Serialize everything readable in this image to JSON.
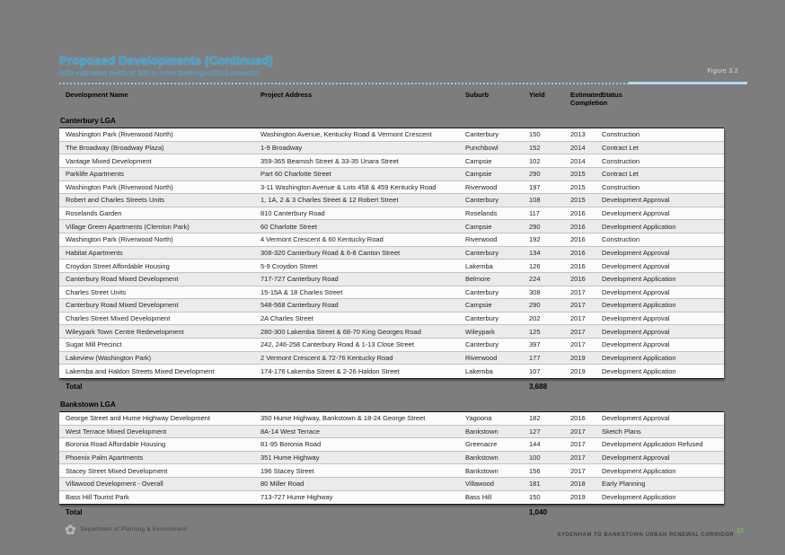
{
  "header": {
    "title": "Proposed Developments (Continued)",
    "subtitle": "With estimated yields of 100 or more dwellings (2013 onwards)",
    "figure_ref": "Figure 3.2",
    "accent_blue": "#2ea6de"
  },
  "table": {
    "columns": [
      "Development Name",
      "Project Address",
      "Suburb",
      "Yield",
      "Estimated Completion",
      "Status"
    ],
    "sections": [
      {
        "name": "Canterbury LGA",
        "total_label": "Total",
        "total": "3,688",
        "rows": [
          {
            "name": "Washington Park (Riverwood North)",
            "address": "Washington Avenue, Kentucky Road & Vermont Crescent",
            "suburb": "Canterbury",
            "yield": "150",
            "completion": "2013",
            "status": "Construction"
          },
          {
            "name": "The Broadway (Broadway Plaza)",
            "address": "1-9 Broadway",
            "suburb": "Punchbowl",
            "yield": "152",
            "completion": "2014",
            "status": "Contract Let"
          },
          {
            "name": "Vantage Mixed Development",
            "address": "359-365 Beamish Street & 33-35 Unara Street",
            "suburb": "Campsie",
            "yield": "102",
            "completion": "2014",
            "status": "Construction"
          },
          {
            "name": "Parklife Apartments",
            "address": "Part 60 Charlotte Street",
            "suburb": "Campsie",
            "yield": "290",
            "completion": "2015",
            "status": "Contract Let"
          },
          {
            "name": "Washington Park (Riverwood North)",
            "address": "3-11 Washington Avenue & Lots 458 & 459 Kentucky Road",
            "suburb": "Riverwood",
            "yield": "197",
            "completion": "2015",
            "status": "Construction"
          },
          {
            "name": "Robert and Charles Streets Units",
            "address": "1, 1A, 2 & 3 Charles Street & 12 Robert Street",
            "suburb": "Canterbury",
            "yield": "108",
            "completion": "2015",
            "status": "Development Approval"
          },
          {
            "name": "Roselands Garden",
            "address": "810 Canterbury Road",
            "suburb": "Roselands",
            "yield": "117",
            "completion": "2016",
            "status": "Development Approval"
          },
          {
            "name": "Village Green Apartments (Clemton Park)",
            "address": "60 Charlotte Street",
            "suburb": "Campsie",
            "yield": "290",
            "completion": "2016",
            "status": "Development Application"
          },
          {
            "name": "Washington Park (Riverwood North)",
            "address": "4 Vermont Crescent & 60 Kentucky Road",
            "suburb": "Riverwood",
            "yield": "192",
            "completion": "2016",
            "status": "Construction"
          },
          {
            "name": "Habitat Apartments",
            "address": "308-320 Canterbury Road & 6-8 Canton Street",
            "suburb": "Canterbury",
            "yield": "134",
            "completion": "2016",
            "status": "Development Approval"
          },
          {
            "name": "Croydon Street Affordable Housing",
            "address": "5-9 Croydon Street",
            "suburb": "Lakemba",
            "yield": "126",
            "completion": "2016",
            "status": "Development Approval"
          },
          {
            "name": "Canterbury Road Mixed Development",
            "address": "717-727 Canterbury Road",
            "suburb": "Belmore",
            "yield": "224",
            "completion": "2016",
            "status": "Development Application"
          },
          {
            "name": "Charles Street Units",
            "address": "15-15A & 18 Charles Street",
            "suburb": "Canterbury",
            "yield": "308",
            "completion": "2017",
            "status": "Development Approval"
          },
          {
            "name": "Canterbury Road Mixed Development",
            "address": "548-568 Canterbury Road",
            "suburb": "Campsie",
            "yield": "290",
            "completion": "2017",
            "status": "Development Application"
          },
          {
            "name": "Charles Street Mixed Development",
            "address": "2A Charles Street",
            "suburb": "Canterbury",
            "yield": "202",
            "completion": "2017",
            "status": "Development Approval"
          },
          {
            "name": "Wileypark Town Centre Redevelopment",
            "address": "280-300 Lakemba Street & 68-70 King Georges Road",
            "suburb": "Wileypark",
            "yield": "125",
            "completion": "2017",
            "status": "Development Approval"
          },
          {
            "name": "Sugar Mill Precinct",
            "address": "242, 246-258 Canterbury Road & 1-13 Close Street",
            "suburb": "Canterbury",
            "yield": "397",
            "completion": "2017",
            "status": "Development Approval"
          },
          {
            "name": "Lakeview (Washington Park)",
            "address": "2 Vermont Crescent & 72-76 Kentucky Road",
            "suburb": "Riverwood",
            "yield": "177",
            "completion": "2019",
            "status": "Development Application"
          },
          {
            "name": "Lakemba and Haldon Streets Mixed Development",
            "address": "174-176 Lakemba Street & 2-26 Haldon Street",
            "suburb": "Lakemba",
            "yield": "107",
            "completion": "2019",
            "status": "Development Application"
          }
        ]
      },
      {
        "name": "Bankstown LGA",
        "total_label": "Total",
        "total": "1,040",
        "rows": [
          {
            "name": "George Street and Hume Highway Development",
            "address": "350 Hume Highway, Bankstown & 18-24 George Street",
            "suburb": "Yagoona",
            "yield": "182",
            "completion": "2016",
            "status": "Development Approval"
          },
          {
            "name": "West Terrace Mixed Development",
            "address": "8A-14 West Terrace",
            "suburb": "Bankstown",
            "yield": "127",
            "completion": "2017",
            "status": "Sketch Plans"
          },
          {
            "name": "Boronia Road Affordable Housing",
            "address": "81-95 Boronia Road",
            "suburb": "Greenacre",
            "yield": "144",
            "completion": "2017",
            "status": "Development Application Refused"
          },
          {
            "name": "Phoenix Palm Apartments",
            "address": "351 Hume Highway",
            "suburb": "Bankstown",
            "yield": "100",
            "completion": "2017",
            "status": "Development Approval"
          },
          {
            "name": "Stacey Street Mixed Development",
            "address": "196 Stacey Street",
            "suburb": "Bankstown",
            "yield": "156",
            "completion": "2017",
            "status": "Development Application"
          },
          {
            "name": "Villawood Development - Overall",
            "address": "80 Miller Road",
            "suburb": "Villawood",
            "yield": "181",
            "completion": "2018",
            "status": "Early Planning"
          },
          {
            "name": "Bass Hill Tourist Park",
            "address": "713-727 Hume Highway",
            "suburb": "Bass Hill",
            "yield": "150",
            "completion": "2019",
            "status": "Development Application"
          }
        ]
      }
    ]
  },
  "footer": {
    "left_text": "Department of Planning & Environment",
    "right_text": "SYDENHAM TO BANKSTOWN URBAN RENEWAL CORRIDOR",
    "right_page": "23",
    "green": "#7ab648"
  }
}
